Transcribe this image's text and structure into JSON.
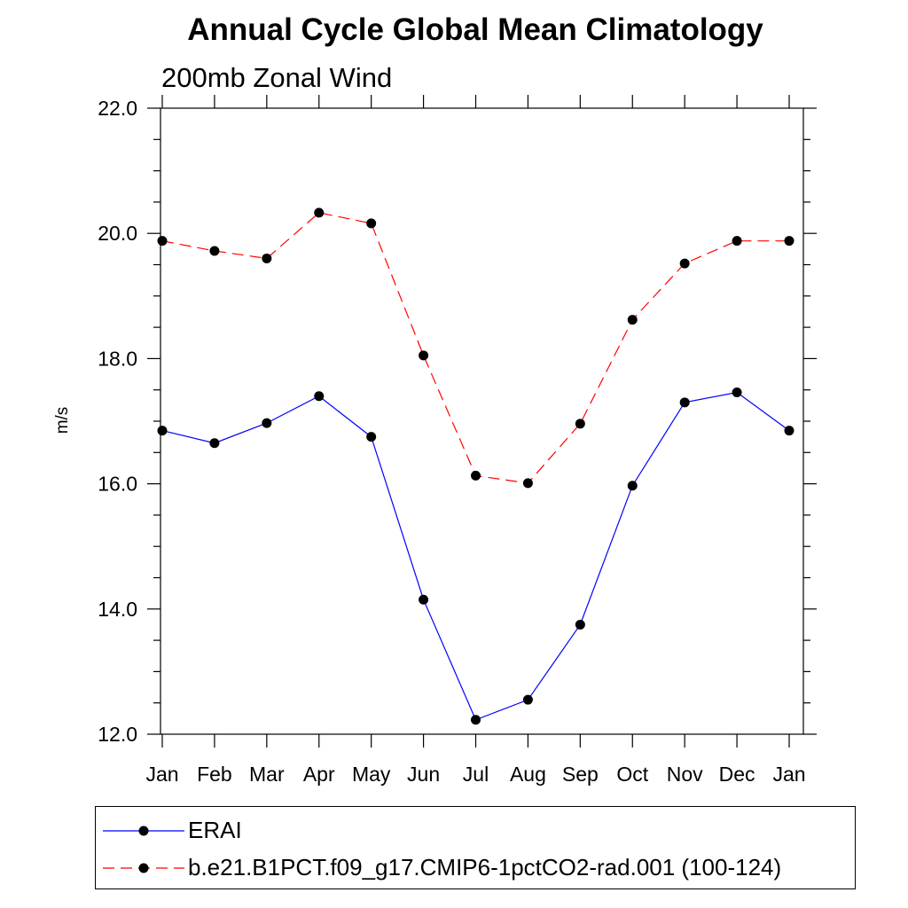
{
  "chart_data": {
    "type": "line",
    "title": "Annual Cycle Global Mean Climatology",
    "subtitle": "200mb Zonal Wind",
    "ylabel": "m/s",
    "xlabel": "",
    "categories": [
      "Jan",
      "Feb",
      "Mar",
      "Apr",
      "May",
      "Jun",
      "Jul",
      "Aug",
      "Sep",
      "Oct",
      "Nov",
      "Dec",
      "Jan"
    ],
    "ylim": [
      12.0,
      22.0
    ],
    "yticks": [
      "12.0",
      "14.0",
      "16.0",
      "18.0",
      "20.0",
      "22.0"
    ],
    "grid": false,
    "legend_position": "bottom",
    "series": [
      {
        "name": "ERAI",
        "color": "#0000ff",
        "line_style": "solid",
        "marker": "filled-circle",
        "values": [
          16.85,
          16.65,
          16.97,
          17.4,
          16.75,
          14.15,
          12.23,
          12.55,
          13.75,
          15.97,
          17.3,
          17.46,
          16.85
        ]
      },
      {
        "name": "b.e21.B1PCT.f09_g17.CMIP6-1pctCO2-rad.001 (100-124)",
        "color": "#ff0000",
        "line_style": "dashed",
        "marker": "filled-circle",
        "values": [
          19.88,
          19.72,
          19.6,
          20.33,
          20.16,
          18.05,
          16.13,
          16.01,
          16.96,
          18.62,
          19.52,
          19.88,
          19.88
        ]
      }
    ]
  }
}
